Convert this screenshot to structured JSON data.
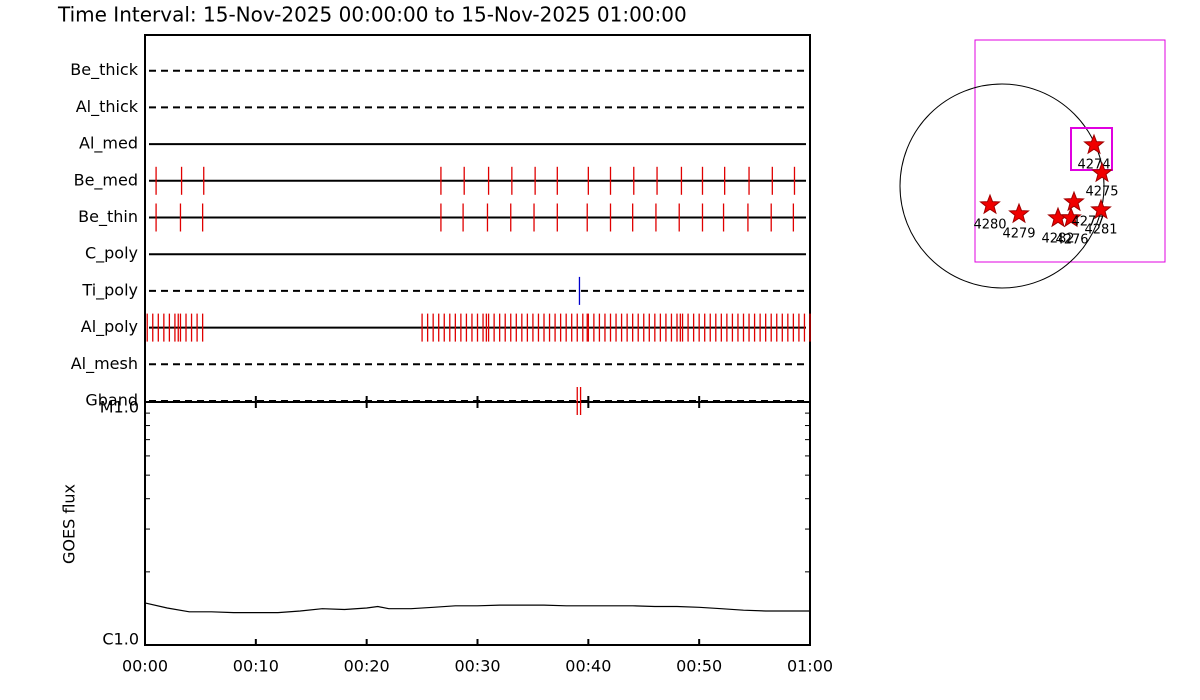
{
  "chart_data": {
    "type": "timeline",
    "title": "Time Interval: 15-Nov-2025 00:00:00 to 15-Nov-2025 01:00:00",
    "xlim": [
      0,
      60
    ],
    "xticks": [
      {
        "value": 0,
        "label": "00:00"
      },
      {
        "value": 10,
        "label": "00:10"
      },
      {
        "value": 20,
        "label": "00:20"
      },
      {
        "value": 30,
        "label": "00:30"
      },
      {
        "value": 40,
        "label": "00:40"
      },
      {
        "value": 50,
        "label": "00:50"
      },
      {
        "value": 60,
        "label": "01:00"
      }
    ],
    "filters": [
      {
        "name": "Be_thick",
        "dashed": true,
        "color": "#e00000",
        "times": []
      },
      {
        "name": "Al_thick",
        "dashed": true,
        "color": "#e00000",
        "times": []
      },
      {
        "name": "Al_med",
        "dashed": false,
        "color": "#e00000",
        "times": []
      },
      {
        "name": "Be_med",
        "dashed": false,
        "color": "#e00000",
        "times": [
          1.0,
          3.3,
          5.3,
          26.7,
          28.8,
          31.0,
          33.1,
          35.2,
          37.2,
          40.0,
          42.0,
          44.1,
          46.2,
          48.4,
          50.3,
          52.3,
          54.5,
          56.6,
          58.6
        ]
      },
      {
        "name": "Be_thin",
        "dashed": false,
        "color": "#e00000",
        "times": [
          1.0,
          3.2,
          5.2,
          26.7,
          28.7,
          30.9,
          33.0,
          35.1,
          37.2,
          39.9,
          42.0,
          44.0,
          46.1,
          48.2,
          50.3,
          52.2,
          54.4,
          56.5,
          58.5
        ]
      },
      {
        "name": "C_poly",
        "dashed": false,
        "color": "#e00000",
        "times": []
      },
      {
        "name": "Ti_poly",
        "dashed": true,
        "color": "#0000cc",
        "times": [
          39.2
        ]
      },
      {
        "name": "Al_poly",
        "dashed": false,
        "color": "#e00000",
        "times": [
          0.2,
          0.7,
          1.2,
          1.7,
          2.2,
          2.7,
          3.0,
          3.2,
          3.7,
          4.2,
          4.7,
          5.2,
          25.0,
          25.5,
          26.0,
          26.5,
          27.0,
          27.5,
          28.0,
          28.5,
          29.0,
          29.5,
          30.0,
          30.5,
          30.8,
          31.0,
          31.5,
          32.0,
          32.5,
          33.0,
          33.5,
          34.0,
          34.5,
          35.0,
          35.5,
          36.0,
          36.5,
          37.0,
          37.5,
          38.0,
          38.5,
          39.0,
          39.5,
          39.9,
          40.0,
          40.5,
          41.0,
          41.5,
          42.0,
          42.5,
          43.0,
          43.5,
          44.0,
          44.5,
          45.0,
          45.5,
          46.0,
          46.5,
          47.0,
          47.5,
          48.0,
          48.3,
          48.5,
          49.0,
          49.5,
          50.0,
          50.5,
          51.0,
          51.5,
          52.0,
          52.5,
          53.0,
          53.5,
          54.0,
          54.5,
          55.0,
          55.5,
          56.0,
          56.5,
          57.0,
          57.5,
          58.0,
          58.5,
          59.0,
          59.5,
          60.0
        ]
      },
      {
        "name": "Al_mesh",
        "dashed": true,
        "color": "#e00000",
        "times": []
      },
      {
        "name": "Gband",
        "dashed": true,
        "color": "#e00000",
        "times": [
          39.0,
          39.3
        ]
      }
    ],
    "goes": {
      "ylabel": "GOES flux",
      "log": true,
      "ylim": [
        1e-06,
        1e-05
      ],
      "yticks": [
        {
          "value": 1e-06,
          "label": "C1.0"
        },
        {
          "value": 1e-05,
          "label": "M1.0"
        }
      ],
      "yminor": [
        2e-06,
        3e-06,
        4e-06,
        5e-06,
        6e-06,
        7e-06,
        8e-06,
        9e-06
      ],
      "color": "#000000",
      "x": [
        0,
        2,
        4,
        6,
        8,
        10,
        12,
        14,
        16,
        18,
        20,
        21,
        22,
        24,
        26,
        28,
        30,
        32,
        34,
        36,
        38,
        40,
        42,
        44,
        46,
        48,
        50,
        52,
        54,
        56,
        58,
        60
      ],
      "values": [
        1.49e-06,
        1.42e-06,
        1.37e-06,
        1.37e-06,
        1.36e-06,
        1.36e-06,
        1.36e-06,
        1.38e-06,
        1.41e-06,
        1.4e-06,
        1.42e-06,
        1.44e-06,
        1.41e-06,
        1.41e-06,
        1.43e-06,
        1.45e-06,
        1.45e-06,
        1.46e-06,
        1.46e-06,
        1.46e-06,
        1.45e-06,
        1.45e-06,
        1.45e-06,
        1.45e-06,
        1.44e-06,
        1.44e-06,
        1.43e-06,
        1.41e-06,
        1.39e-06,
        1.38e-06,
        1.38e-06,
        1.38e-06
      ]
    }
  },
  "map": {
    "regions": [
      "4274",
      "4275",
      "4280",
      "4279",
      "4282",
      "4276",
      "4277",
      "4281"
    ]
  }
}
